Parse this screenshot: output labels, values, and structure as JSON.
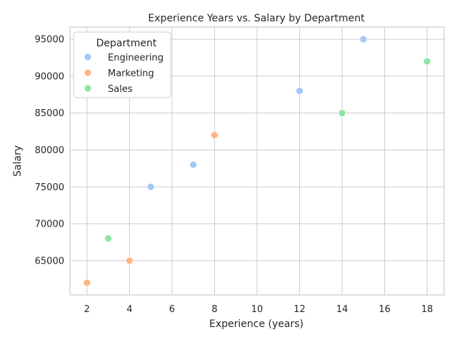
{
  "chart_data": {
    "type": "scatter",
    "title": "Experience Years vs. Salary by Department",
    "xlabel": "Experience (years)",
    "ylabel": "Salary",
    "xlim": [
      1.2,
      18.8
    ],
    "ylim": [
      60350,
      96650
    ],
    "xticks": [
      2,
      4,
      6,
      8,
      10,
      12,
      14,
      16,
      18
    ],
    "yticks": [
      65000,
      70000,
      75000,
      80000,
      85000,
      90000,
      95000
    ],
    "grid": true,
    "legend": {
      "title": "Department",
      "position": "top-left"
    },
    "series": [
      {
        "name": "Engineering",
        "color": "#a1c9f4",
        "points": [
          {
            "x": 5,
            "y": 75000
          },
          {
            "x": 7,
            "y": 78000
          },
          {
            "x": 12,
            "y": 88000
          },
          {
            "x": 15,
            "y": 95000
          }
        ]
      },
      {
        "name": "Marketing",
        "color": "#ffb482",
        "points": [
          {
            "x": 2,
            "y": 62000
          },
          {
            "x": 4,
            "y": 65000
          },
          {
            "x": 8,
            "y": 82000
          }
        ]
      },
      {
        "name": "Sales",
        "color": "#8de5a1",
        "points": [
          {
            "x": 3,
            "y": 68000
          },
          {
            "x": 14,
            "y": 85000
          },
          {
            "x": 18,
            "y": 92000
          }
        ]
      }
    ]
  }
}
